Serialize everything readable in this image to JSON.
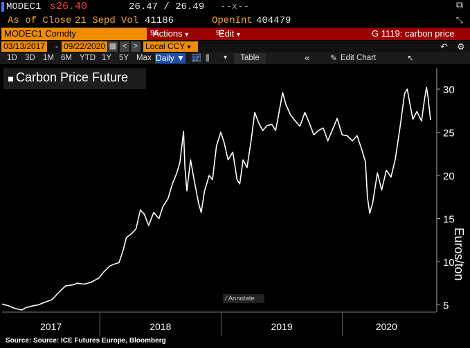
{
  "header": {
    "ticker": "MODEC1",
    "last_prefix": "s",
    "last_price": "26.40",
    "bid_ask": "26.47 / 26.49",
    "separator": "--x--",
    "as_of_label": "As of Close",
    "as_of_date": "21 Sepd",
    "vol_label": "Vol",
    "vol_value": "41186",
    "openint_label": "OpenInt",
    "openint_value": "404479"
  },
  "security_bar": {
    "security": "MODEC1 Comdty",
    "actions_num": "96",
    "actions_label": "Actions",
    "edit_num": "97",
    "edit_label": "Edit",
    "function_label": "G 1119: carbon price",
    "actions_caret": "▾",
    "edit_caret": "▾"
  },
  "date_bar": {
    "start_date": "03/13/2017",
    "dash": "-",
    "end_date": "09/22/2020",
    "prev": "<",
    "next": ">",
    "ccy": "Local CCY",
    "ccy_caret": "▾"
  },
  "toolbar": {
    "ranges": [
      "1D",
      "3D",
      "1M",
      "6M",
      "YTD",
      "1Y",
      "5Y",
      "Max"
    ],
    "frequency": "Daily ▼",
    "table_label": "Table",
    "edit_chart_label": "Edit Chart",
    "collapse": "«",
    "caret": "▾"
  },
  "legend": {
    "label": "Carbon Price Future"
  },
  "annotate_label": "Annotate",
  "source": "Source: Source: ICE Futures Europe, Bloomberg",
  "colors": {
    "orange": "#f08c00",
    "dark_red": "#9a0000",
    "amber": "#f5a623",
    "accent_blue": "#1e4fae"
  },
  "chart_data": {
    "type": "line",
    "title": "",
    "xlabel": "",
    "ylabel": "Euros/ton",
    "ylim": [
      4,
      32
    ],
    "yticks": [
      5,
      10,
      15,
      20,
      25,
      30
    ],
    "xlim": [
      "2017-03-13",
      "2020-09-22"
    ],
    "x_tick_labels": [
      "2017",
      "2018",
      "2019",
      "2020"
    ],
    "year_boundaries": [
      "2018-01-01",
      "2019-01-01",
      "2020-01-01"
    ],
    "grid": false,
    "legend": "top-left",
    "series": [
      {
        "name": "Carbon Price Future",
        "color": "#ffffff",
        "points": [
          [
            "2017-03-13",
            5.1
          ],
          [
            "2017-04-01",
            4.9
          ],
          [
            "2017-04-20",
            4.6
          ],
          [
            "2017-05-10",
            4.4
          ],
          [
            "2017-05-25",
            4.7
          ],
          [
            "2017-06-15",
            4.9
          ],
          [
            "2017-06-30",
            5.0
          ],
          [
            "2017-07-20",
            5.3
          ],
          [
            "2017-08-10",
            5.6
          ],
          [
            "2017-09-01",
            6.5
          ],
          [
            "2017-09-20",
            7.2
          ],
          [
            "2017-10-10",
            7.3
          ],
          [
            "2017-10-25",
            7.5
          ],
          [
            "2017-11-15",
            7.4
          ],
          [
            "2017-12-05",
            7.6
          ],
          [
            "2017-12-29",
            8.1
          ],
          [
            "2018-01-15",
            8.9
          ],
          [
            "2018-01-31",
            9.5
          ],
          [
            "2018-02-12",
            9.7
          ],
          [
            "2018-02-28",
            9.9
          ],
          [
            "2018-03-12",
            11.3
          ],
          [
            "2018-03-22",
            12.8
          ],
          [
            "2018-04-05",
            13.2
          ],
          [
            "2018-04-20",
            13.8
          ],
          [
            "2018-05-03",
            16.0
          ],
          [
            "2018-05-15",
            15.5
          ],
          [
            "2018-05-28",
            14.2
          ],
          [
            "2018-06-12",
            15.7
          ],
          [
            "2018-06-28",
            15.0
          ],
          [
            "2018-07-10",
            16.4
          ],
          [
            "2018-07-25",
            17.3
          ],
          [
            "2018-08-08",
            19.1
          ],
          [
            "2018-08-20",
            20.2
          ],
          [
            "2018-08-30",
            21.5
          ],
          [
            "2018-09-10",
            25.1
          ],
          [
            "2018-09-14",
            21.0
          ],
          [
            "2018-09-20",
            18.2
          ],
          [
            "2018-10-01",
            21.8
          ],
          [
            "2018-10-12",
            19.4
          ],
          [
            "2018-10-25",
            16.8
          ],
          [
            "2018-11-02",
            15.7
          ],
          [
            "2018-11-12",
            18.2
          ],
          [
            "2018-11-26",
            20.0
          ],
          [
            "2018-12-06",
            19.5
          ],
          [
            "2018-12-18",
            23.4
          ],
          [
            "2018-12-31",
            25.0
          ],
          [
            "2019-01-10",
            23.8
          ],
          [
            "2019-01-22",
            21.8
          ],
          [
            "2019-02-05",
            22.7
          ],
          [
            "2019-02-18",
            19.5
          ],
          [
            "2019-02-26",
            19.0
          ],
          [
            "2019-03-08",
            21.8
          ],
          [
            "2019-03-20",
            20.9
          ],
          [
            "2019-04-01",
            24.0
          ],
          [
            "2019-04-12",
            27.3
          ],
          [
            "2019-04-24",
            26.1
          ],
          [
            "2019-05-06",
            25.2
          ],
          [
            "2019-05-20",
            25.8
          ],
          [
            "2019-06-03",
            25.9
          ],
          [
            "2019-06-14",
            25.2
          ],
          [
            "2019-06-26",
            27.7
          ],
          [
            "2019-07-05",
            29.6
          ],
          [
            "2019-07-15",
            28.2
          ],
          [
            "2019-07-29",
            27.0
          ],
          [
            "2019-08-12",
            26.3
          ],
          [
            "2019-08-26",
            25.7
          ],
          [
            "2019-09-10",
            27.3
          ],
          [
            "2019-09-24",
            26.0
          ],
          [
            "2019-10-07",
            24.7
          ],
          [
            "2019-10-21",
            25.2
          ],
          [
            "2019-11-04",
            25.5
          ],
          [
            "2019-11-18",
            24.0
          ],
          [
            "2019-12-02",
            25.3
          ],
          [
            "2019-12-16",
            26.6
          ],
          [
            "2019-12-31",
            24.7
          ],
          [
            "2020-01-15",
            24.6
          ],
          [
            "2020-01-31",
            24.0
          ],
          [
            "2020-02-14",
            24.6
          ],
          [
            "2020-02-28",
            23.0
          ],
          [
            "2020-03-10",
            21.6
          ],
          [
            "2020-03-16",
            17.5
          ],
          [
            "2020-03-23",
            15.6
          ],
          [
            "2020-04-01",
            16.8
          ],
          [
            "2020-04-15",
            20.3
          ],
          [
            "2020-04-28",
            18.3
          ],
          [
            "2020-05-12",
            20.6
          ],
          [
            "2020-05-26",
            19.8
          ],
          [
            "2020-06-08",
            21.9
          ],
          [
            "2020-06-22",
            25.5
          ],
          [
            "2020-07-06",
            29.5
          ],
          [
            "2020-07-14",
            30.0
          ],
          [
            "2020-07-21",
            28.5
          ],
          [
            "2020-07-31",
            26.5
          ],
          [
            "2020-08-12",
            27.4
          ],
          [
            "2020-08-26",
            26.3
          ],
          [
            "2020-09-03",
            28.6
          ],
          [
            "2020-09-10",
            30.2
          ],
          [
            "2020-09-14",
            29.2
          ],
          [
            "2020-09-22",
            26.4
          ]
        ]
      }
    ]
  }
}
